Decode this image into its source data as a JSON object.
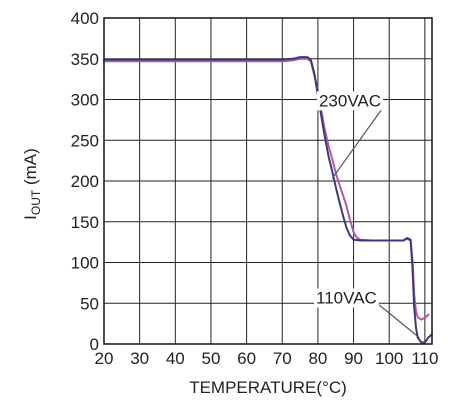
{
  "chart_data": {
    "type": "line",
    "xlabel": "TEMPERATURE(°C)",
    "ylabel_main": "I",
    "ylabel_sub": "OUT",
    "ylabel_suffix": " (mA)",
    "xlim": [
      20,
      112
    ],
    "ylim": [
      0,
      400
    ],
    "x_ticks": [
      20,
      30,
      40,
      50,
      60,
      70,
      80,
      90,
      100,
      110
    ],
    "y_ticks": [
      0,
      50,
      100,
      150,
      200,
      250,
      300,
      350,
      400
    ],
    "grid": true,
    "series": [
      {
        "name": "230VAC",
        "color": "#b05aa8",
        "points": [
          [
            20,
            347
          ],
          [
            70,
            347
          ],
          [
            73,
            348
          ],
          [
            75,
            350
          ],
          [
            77,
            350
          ],
          [
            78,
            347
          ],
          [
            79,
            330
          ],
          [
            80,
            312
          ],
          [
            81,
            285
          ],
          [
            82,
            262
          ],
          [
            83,
            243
          ],
          [
            84,
            227
          ],
          [
            85,
            210
          ],
          [
            86,
            196
          ],
          [
            87,
            183
          ],
          [
            88,
            170
          ],
          [
            89,
            152
          ],
          [
            90,
            137
          ],
          [
            91,
            130
          ],
          [
            92,
            128
          ],
          [
            95,
            127
          ],
          [
            100,
            127
          ],
          [
            104,
            127
          ],
          [
            105,
            129
          ],
          [
            106,
            127
          ],
          [
            106.6,
            100
          ],
          [
            107,
            60
          ],
          [
            107.5,
            40
          ],
          [
            108,
            33
          ],
          [
            109,
            30
          ],
          [
            110,
            32
          ],
          [
            111,
            36
          ]
        ]
      },
      {
        "name": "110VAC",
        "color": "#3a3a78",
        "points": [
          [
            20,
            349
          ],
          [
            70,
            349
          ],
          [
            73,
            350
          ],
          [
            75,
            352
          ],
          [
            77,
            352
          ],
          [
            78,
            349
          ],
          [
            79,
            332
          ],
          [
            80,
            305
          ],
          [
            81,
            278
          ],
          [
            82,
            253
          ],
          [
            83,
            230
          ],
          [
            84,
            212
          ],
          [
            85,
            193
          ],
          [
            86,
            175
          ],
          [
            87,
            158
          ],
          [
            88,
            143
          ],
          [
            89,
            133
          ],
          [
            90,
            128
          ],
          [
            92,
            127
          ],
          [
            95,
            127
          ],
          [
            100,
            127
          ],
          [
            104,
            127
          ],
          [
            105,
            130
          ],
          [
            106,
            128
          ],
          [
            106.5,
            95
          ],
          [
            107,
            45
          ],
          [
            107.5,
            20
          ],
          [
            108,
            8
          ],
          [
            109,
            2
          ],
          [
            110,
            2
          ],
          [
            111,
            8
          ],
          [
            112,
            12
          ]
        ]
      }
    ],
    "annotations": [
      {
        "text": "230VAC",
        "label_x": 89,
        "label_y": 299,
        "anchor": [
          84,
          203
        ]
      },
      {
        "text": "110VAC",
        "label_x": 88,
        "label_y": 57,
        "anchor": [
          108.4,
          8
        ]
      }
    ]
  }
}
